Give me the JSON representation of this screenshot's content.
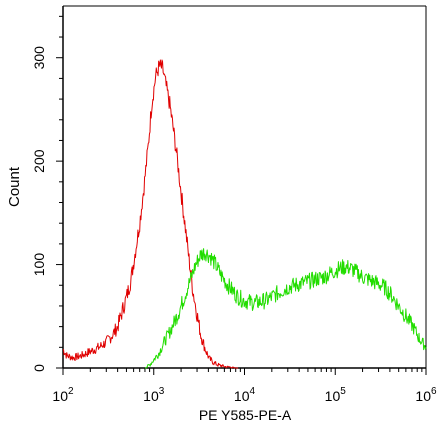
{
  "chart_data": {
    "type": "line",
    "xlabel": "PE Y585-PE-A",
    "ylabel": "Count",
    "x_scale": "log",
    "xlim": [
      100,
      1000000
    ],
    "ylim": [
      0,
      350
    ],
    "x_ticks": [
      {
        "value": 100,
        "base": "10",
        "exp": "2"
      },
      {
        "value": 1000,
        "base": "10",
        "exp": "3"
      },
      {
        "value": 10000,
        "base": "10",
        "exp": "4"
      },
      {
        "value": 100000,
        "base": "10",
        "exp": "5"
      },
      {
        "value": 1000000,
        "base": "10",
        "exp": "6"
      }
    ],
    "y_ticks": [
      {
        "value": 0,
        "label": "0"
      },
      {
        "value": 100,
        "label": "100"
      },
      {
        "value": 200,
        "label": "200"
      },
      {
        "value": 300,
        "label": "300"
      }
    ],
    "grid": false,
    "series": [
      {
        "color": "#e00000",
        "x": [
          100,
          110,
          130,
          160,
          200,
          250,
          300,
          350,
          400,
          450,
          500,
          560,
          620,
          700,
          780,
          870,
          950,
          1050,
          1150,
          1250,
          1350,
          1500,
          1650,
          1800,
          2000,
          2200,
          2450,
          2700,
          3000,
          3300,
          3700,
          4100,
          4600,
          5100,
          5700,
          6300,
          7000,
          7800,
          8500
        ],
        "y": [
          18,
          12,
          10,
          12,
          16,
          20,
          25,
          32,
          40,
          55,
          68,
          85,
          110,
          140,
          175,
          215,
          255,
          282,
          292,
          290,
          275,
          255,
          230,
          205,
          170,
          140,
          105,
          75,
          52,
          32,
          18,
          9,
          5,
          3,
          2,
          1,
          1,
          0,
          0
        ]
      },
      {
        "color": "#22dd00",
        "x": [
          800,
          900,
          1000,
          1150,
          1300,
          1500,
          1700,
          1900,
          2100,
          2300,
          2600,
          2900,
          3300,
          3700,
          4200,
          4800,
          5500,
          6300,
          7200,
          8200,
          9500,
          11000,
          13000,
          15000,
          18000,
          21000,
          25000,
          30000,
          36000,
          43000,
          52000,
          62000,
          75000,
          90000,
          110000,
          130000,
          150000,
          175000,
          200000,
          240000,
          290000,
          350000,
          420000,
          500000,
          600000,
          720000,
          850000,
          1000000
        ],
        "y": [
          0,
          3,
          8,
          15,
          25,
          35,
          45,
          55,
          65,
          75,
          88,
          100,
          110,
          112,
          108,
          100,
          90,
          82,
          76,
          70,
          66,
          64,
          63,
          64,
          66,
          70,
          74,
          78,
          80,
          82,
          84,
          86,
          88,
          92,
          96,
          98,
          96,
          92,
          88,
          85,
          82,
          78,
          70,
          60,
          50,
          40,
          28,
          20
        ]
      }
    ]
  }
}
